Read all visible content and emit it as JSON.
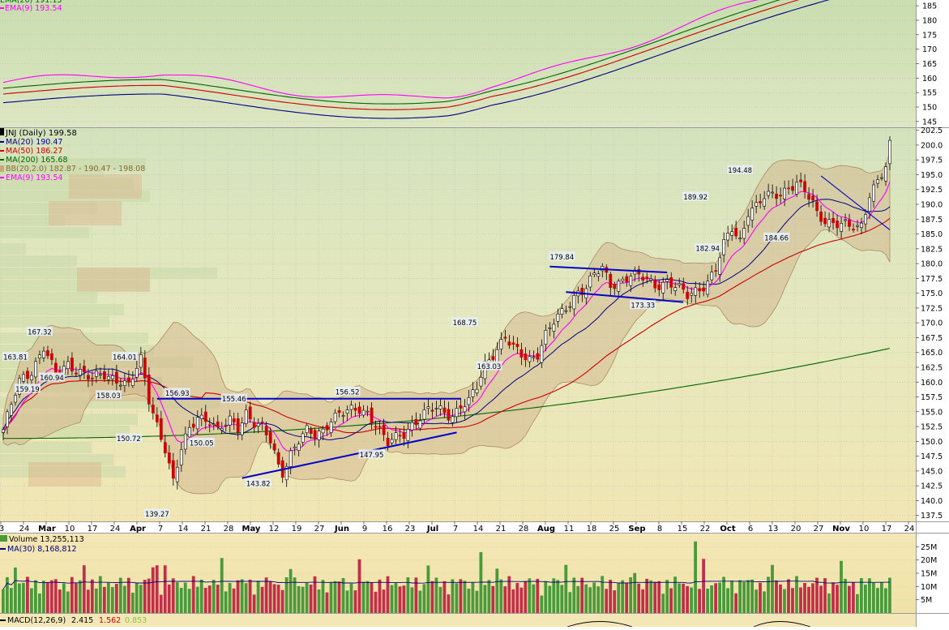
{
  "colors": {
    "ma20": "#000080",
    "ma50": "#cc0000",
    "ma200": "#006600",
    "ema9": "#ff00ff",
    "bb_fill": "#d2b48c",
    "up": "#ffffff",
    "down": "#cc0000",
    "trendline": "#0000cc",
    "vol_up": "#4a9a3c",
    "vol_down": "#c0304a"
  },
  "top_panel": {
    "legend_ema9": "EMA(9) 193.54",
    "y_ticks": [
      "145",
      "150",
      "155",
      "160",
      "165",
      "170",
      "175",
      "180",
      "185"
    ]
  },
  "price_panel": {
    "legend": {
      "symbol": "JNJ (Daily) 199.58",
      "ma20": "MA(20) 190.47",
      "ma50": "MA(50) 186.27",
      "ma200": "MA(200) 165.68",
      "bb": "BB(20,2.0) 182.87 - 190.47 - 198.08",
      "ema9": "EMA(9) 193.54"
    }
  },
  "volume_panel": {
    "legend_volume": "Volume 13,255,113",
    "legend_ma30": "MA(30) 8,168,812",
    "y_ticks": [
      "5M",
      "10M",
      "15M",
      "20M",
      "25M"
    ]
  },
  "macd_panel": {
    "legend_label": "MACD(12,26,9)",
    "macd_value": "2.415",
    "signal_value": "1.562",
    "hist_value": "0.853"
  },
  "x_axis": {
    "ticks": [
      {
        "label": "3",
        "bold": false
      },
      {
        "label": "24",
        "bold": false
      },
      {
        "label": "Mar",
        "bold": true
      },
      {
        "label": "10",
        "bold": false
      },
      {
        "label": "17",
        "bold": false
      },
      {
        "label": "24",
        "bold": false
      },
      {
        "label": "Apr",
        "bold": true
      },
      {
        "label": "7",
        "bold": false
      },
      {
        "label": "14",
        "bold": false
      },
      {
        "label": "21",
        "bold": false
      },
      {
        "label": "28",
        "bold": false
      },
      {
        "label": "May",
        "bold": true
      },
      {
        "label": "12",
        "bold": false
      },
      {
        "label": "19",
        "bold": false
      },
      {
        "label": "27",
        "bold": false
      },
      {
        "label": "Jun",
        "bold": true
      },
      {
        "label": "9",
        "bold": false
      },
      {
        "label": "16",
        "bold": false
      },
      {
        "label": "23",
        "bold": false
      },
      {
        "label": "Jul",
        "bold": true
      },
      {
        "label": "7",
        "bold": false
      },
      {
        "label": "14",
        "bold": false
      },
      {
        "label": "21",
        "bold": false
      },
      {
        "label": "28",
        "bold": false
      },
      {
        "label": "Aug",
        "bold": true
      },
      {
        "label": "11",
        "bold": false
      },
      {
        "label": "18",
        "bold": false
      },
      {
        "label": "25",
        "bold": false
      },
      {
        "label": "Sep",
        "bold": true
      },
      {
        "label": "8",
        "bold": false
      },
      {
        "label": "15",
        "bold": false
      },
      {
        "label": "22",
        "bold": false
      },
      {
        "label": "Oct",
        "bold": true
      },
      {
        "label": "6",
        "bold": false
      },
      {
        "label": "13",
        "bold": false
      },
      {
        "label": "20",
        "bold": false
      },
      {
        "label": "27",
        "bold": false
      },
      {
        "label": "Nov",
        "bold": true
      },
      {
        "label": "10",
        "bold": false
      },
      {
        "label": "17",
        "bold": false
      },
      {
        "label": "24",
        "bold": false
      }
    ]
  },
  "chart_data": {
    "type": "candlestick",
    "symbol": "JNJ",
    "interval": "Daily",
    "ylim": [
      136.5,
      203
    ],
    "y_ticks": [
      137.5,
      140,
      142.5,
      145,
      147.5,
      150,
      152.5,
      155,
      157.5,
      160,
      162.5,
      165,
      167.5,
      170,
      172.5,
      175,
      177.5,
      180,
      182.5,
      185,
      187.5,
      190,
      192.5,
      195,
      197.5,
      200,
      202.5
    ],
    "close_anchors": [
      [
        0,
        152
      ],
      [
        4,
        160
      ],
      [
        7,
        162
      ],
      [
        10,
        166
      ],
      [
        13,
        161
      ],
      [
        16,
        163
      ],
      [
        19,
        162
      ],
      [
        22,
        160.5
      ],
      [
        25,
        161
      ],
      [
        29,
        160.5
      ],
      [
        31,
        159.5
      ],
      [
        34,
        163.5
      ],
      [
        36,
        157
      ],
      [
        38,
        153
      ],
      [
        40,
        149
      ],
      [
        42,
        143
      ],
      [
        44,
        148.5
      ],
      [
        46,
        152
      ],
      [
        48,
        154.5
      ],
      [
        51,
        153.5
      ],
      [
        53,
        151.5
      ],
      [
        56,
        153.5
      ],
      [
        58,
        152.5
      ],
      [
        60,
        155
      ],
      [
        62,
        153
      ],
      [
        64,
        152
      ],
      [
        66,
        150
      ],
      [
        68,
        146
      ],
      [
        69,
        145
      ],
      [
        71,
        148
      ],
      [
        73,
        150
      ],
      [
        75,
        151.5
      ],
      [
        77,
        151
      ],
      [
        79,
        152
      ],
      [
        81,
        154
      ],
      [
        83,
        154.5
      ],
      [
        86,
        155
      ],
      [
        88,
        155.5
      ],
      [
        90,
        155
      ],
      [
        92,
        153
      ],
      [
        94,
        150.5
      ],
      [
        95,
        149.5
      ],
      [
        97,
        150.5
      ],
      [
        99,
        151.5
      ],
      [
        101,
        153
      ],
      [
        103,
        154
      ],
      [
        105,
        155
      ],
      [
        107,
        155.5
      ],
      [
        109,
        155
      ],
      [
        111,
        154.5
      ],
      [
        113,
        156
      ],
      [
        115,
        156.5
      ],
      [
        117,
        159
      ],
      [
        119,
        163
      ],
      [
        121,
        165
      ],
      [
        124,
        167.5
      ],
      [
        126,
        165.5
      ],
      [
        128,
        164.5
      ],
      [
        130,
        164
      ],
      [
        132,
        165
      ],
      [
        134,
        168
      ],
      [
        136,
        170
      ],
      [
        138,
        171.5
      ],
      [
        140,
        173.5
      ],
      [
        142,
        175.5
      ],
      [
        144,
        176
      ],
      [
        146,
        178
      ],
      [
        148,
        179
      ],
      [
        150,
        176.5
      ],
      [
        152,
        177
      ],
      [
        155,
        178
      ],
      [
        158,
        177.5
      ],
      [
        161,
        176.5
      ],
      [
        164,
        177
      ],
      [
        167,
        175.5
      ],
      [
        169,
        174.5
      ],
      [
        171,
        175.5
      ],
      [
        174,
        177
      ],
      [
        176,
        179
      ],
      [
        178,
        183
      ],
      [
        180,
        186
      ],
      [
        182,
        184
      ],
      [
        184,
        189
      ],
      [
        186,
        189.5
      ],
      [
        188,
        191
      ],
      [
        190,
        191.5
      ],
      [
        192,
        192
      ],
      [
        194,
        193
      ],
      [
        196,
        193.5
      ],
      [
        198,
        192
      ],
      [
        200,
        190
      ],
      [
        201,
        188.5
      ],
      [
        203,
        187.5
      ],
      [
        205,
        187
      ],
      [
        207,
        186.5
      ],
      [
        209,
        186
      ],
      [
        211,
        186
      ],
      [
        212,
        186.5
      ],
      [
        214,
        192
      ],
      [
        216,
        194
      ],
      [
        218,
        196
      ],
      [
        219,
        199.6
      ]
    ],
    "bar_count": 220,
    "series": [
      {
        "name": "MA(20)",
        "last": 190.47
      },
      {
        "name": "MA(50)",
        "last": 186.27
      },
      {
        "name": "MA(200)",
        "last": 165.68
      },
      {
        "name": "EMA(9)",
        "last": 193.54
      }
    ],
    "bollinger": {
      "lower": 182.87,
      "middle": 190.47,
      "upper": 198.08
    },
    "trendlines": [
      {
        "kind": "resistance",
        "from": [
          38,
          157.2
        ],
        "to": [
          113,
          157.2
        ]
      },
      {
        "kind": "support",
        "from": [
          59,
          143.8
        ],
        "to": [
          112,
          151.5
        ]
      },
      {
        "kind": "channel-top",
        "from": [
          135,
          179.5
        ],
        "to": [
          164,
          178.5
        ]
      },
      {
        "kind": "channel-bottom",
        "from": [
          139,
          175.2
        ],
        "to": [
          168,
          173.5
        ]
      },
      {
        "kind": "downtrend",
        "from": [
          202,
          194.8
        ],
        "to": [
          219,
          185.7
        ]
      }
    ],
    "annotations": [
      {
        "text": "163.81",
        "x": 3,
        "y": 164.3
      },
      {
        "text": "167.32",
        "x": 9,
        "y": 168.5
      },
      {
        "text": "159.19",
        "x": 6,
        "y": 158.9
      },
      {
        "text": "160.94",
        "x": 12,
        "y": 160.8
      },
      {
        "text": "164.01",
        "x": 30,
        "y": 164.3
      },
      {
        "text": "158.03",
        "x": 26,
        "y": 157.8
      },
      {
        "text": "150.72",
        "x": 31,
        "y": 150.5
      },
      {
        "text": "139.27",
        "x": 38,
        "y": 137.8
      },
      {
        "text": "156.93",
        "x": 43,
        "y": 158.2
      },
      {
        "text": "155.46",
        "x": 57,
        "y": 157.2
      },
      {
        "text": "150.05",
        "x": 49,
        "y": 149.8
      },
      {
        "text": "143.82",
        "x": 63,
        "y": 142.9
      },
      {
        "text": "156.52",
        "x": 85,
        "y": 158.4
      },
      {
        "text": "147.95",
        "x": 91,
        "y": 147.8
      },
      {
        "text": "168.75",
        "x": 114,
        "y": 170.1
      },
      {
        "text": "163.03",
        "x": 120,
        "y": 162.7
      },
      {
        "text": "179.84",
        "x": 138,
        "y": 181.2
      },
      {
        "text": "173.33",
        "x": 158,
        "y": 173.0
      },
      {
        "text": "189.92",
        "x": 171,
        "y": 191.3
      },
      {
        "text": "182.94",
        "x": 174,
        "y": 182.6
      },
      {
        "text": "194.48",
        "x": 182,
        "y": 195.8
      },
      {
        "text": "184.66",
        "x": 191,
        "y": 184.4
      }
    ],
    "volume_ylim": [
      0,
      30
    ]
  }
}
